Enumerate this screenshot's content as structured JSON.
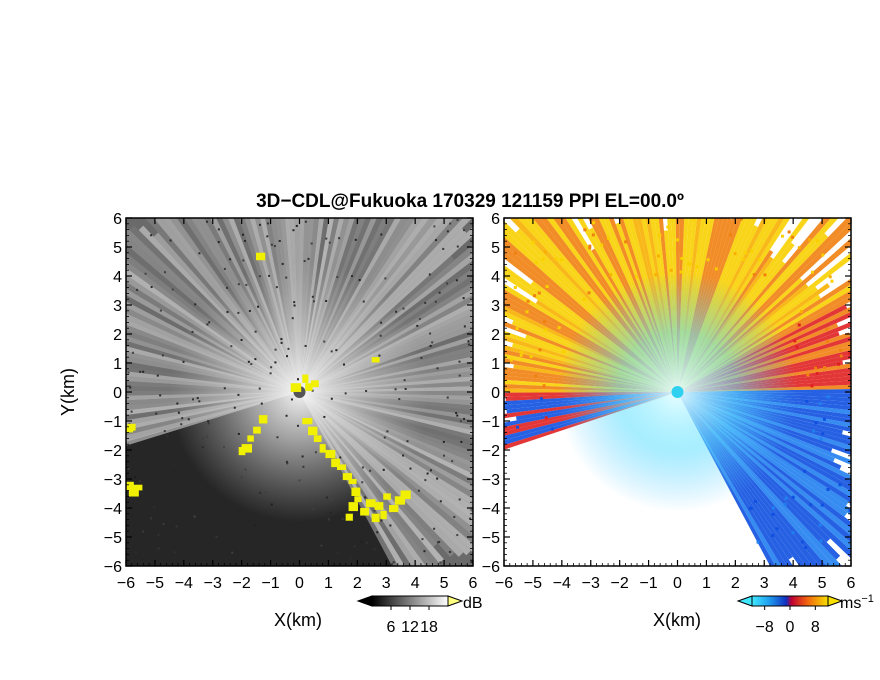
{
  "title": "3D−CDL@Fukuoka 170329 121159 PPI EL=00.0º",
  "chart_data": [
    {
      "type": "heatmap",
      "panel": "reflectivity",
      "xlabel": "X(km)",
      "ylabel": "Y(km)",
      "xlim": [
        -6,
        6
      ],
      "ylim": [
        -6,
        6
      ],
      "xticks": [
        "−6",
        "−5",
        "−4",
        "−3",
        "−2",
        "−1",
        "0",
        "1",
        "2",
        "3",
        "4",
        "5",
        "6"
      ],
      "yticks": [
        "−6",
        "−5",
        "−4",
        "−3",
        "−2",
        "−1",
        "0",
        "1",
        "2",
        "3",
        "4",
        "5",
        "6"
      ],
      "colorbar": {
        "unit": "dB",
        "ticks": [
          "6",
          "12",
          "18"
        ],
        "values": [
          6,
          12,
          18
        ],
        "range": [
          0,
          24
        ],
        "colormap": "grayscale",
        "extend": "both"
      },
      "highlight_color": "#f0f000",
      "background_color": "#262626"
    },
    {
      "type": "heatmap",
      "panel": "doppler velocity",
      "xlabel": "X(km)",
      "ylabel": "",
      "xlim": [
        -6,
        6
      ],
      "ylim": [
        -6,
        6
      ],
      "xticks": [
        "−6",
        "−5",
        "−4",
        "−3",
        "−2",
        "−1",
        "0",
        "1",
        "2",
        "3",
        "4",
        "5",
        "6"
      ],
      "yticks": [
        "−6",
        "−5",
        "−4",
        "−3",
        "−2",
        "−1",
        "0",
        "1",
        "2",
        "3",
        "4",
        "5",
        "6"
      ],
      "colorbar": {
        "unit": "ms",
        "unit_exponent": "−1",
        "ticks": [
          "−8",
          "0",
          "8"
        ],
        "values": [
          -8,
          0,
          8
        ],
        "range": [
          -12,
          12
        ],
        "colormap": "cyan-blue-red-yellow",
        "extend": "both"
      },
      "colors": {
        "cyan": "#30d0f0",
        "blue": "#1050e0",
        "red": "#e02020",
        "orange": "#f08010",
        "yellow": "#f8d000"
      }
    }
  ]
}
